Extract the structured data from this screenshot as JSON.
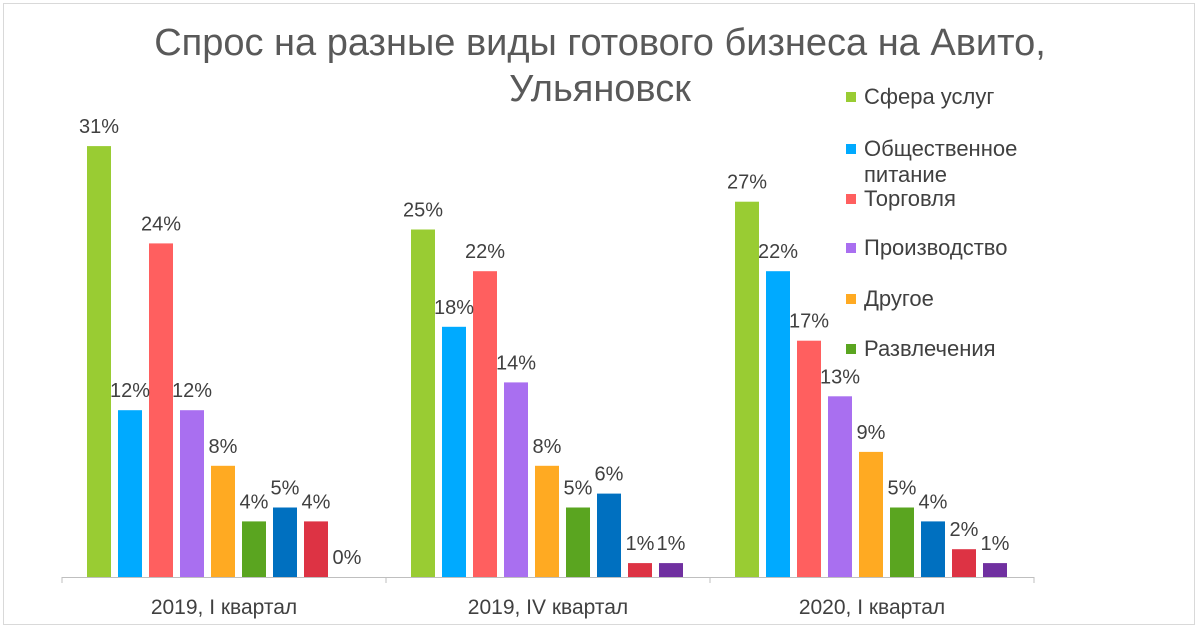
{
  "chart_data": {
    "type": "bar",
    "title": "Спрос на разные виды готового бизнеса на Авито, Ульяновск",
    "title_lines": [
      "Спрос на разные виды готового бизнеса на Авито,",
      "Ульяновск"
    ],
    "categories": [
      "2019, I квартал",
      "2019, IV квартал",
      "2020, I квартал"
    ],
    "ylim": [
      0,
      33
    ],
    "grid": false,
    "legend_position": "top-right",
    "value_suffix": "%",
    "series": [
      {
        "name": "Сфера услуг",
        "color": "#99cc33",
        "values": [
          31,
          25,
          27
        ]
      },
      {
        "name": "Общественное питание",
        "color": "#00aaff",
        "values": [
          12,
          18,
          22
        ]
      },
      {
        "name": "Торговля",
        "color": "#ff5f5f",
        "values": [
          24,
          22,
          17
        ]
      },
      {
        "name": "Производство",
        "color": "#a96ff0",
        "values": [
          12,
          14,
          13
        ]
      },
      {
        "name": "Другое",
        "color": "#ffaa22",
        "values": [
          8,
          8,
          9
        ]
      },
      {
        "name": "Развлечения",
        "color": "#5aa520",
        "values": [
          4,
          5,
          5
        ]
      },
      {
        "color": "#0070c0",
        "values": [
          5,
          6,
          4
        ]
      },
      {
        "color": "#dd3344",
        "values": [
          4,
          1,
          2
        ]
      },
      {
        "color": "#7030a0",
        "values": [
          0,
          1,
          1
        ]
      }
    ]
  }
}
